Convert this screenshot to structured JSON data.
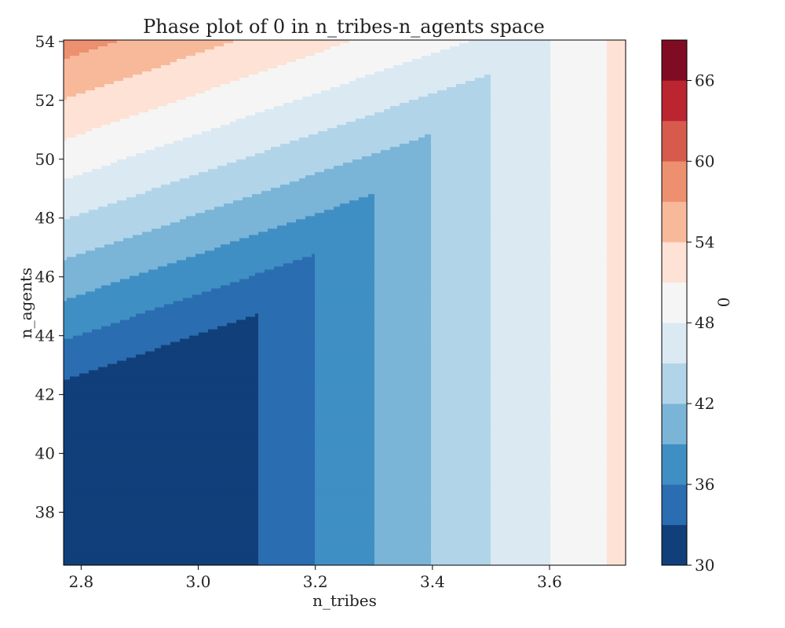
{
  "chart_data": {
    "type": "contourf",
    "title": "Phase plot of 0 in n_tribes-n_agents space",
    "xlabel": "n_tribes",
    "ylabel": "n_agents",
    "colorbar_label": "0",
    "xlim": [
      2.77,
      3.73
    ],
    "ylim": [
      36.2,
      54.05
    ],
    "x_ticks": [
      2.8,
      3.0,
      3.2,
      3.4,
      3.6
    ],
    "y_ticks": [
      38,
      40,
      42,
      44,
      46,
      48,
      50,
      52,
      54
    ],
    "x_tick_labels": [
      "2.8",
      "3.0",
      "3.2",
      "3.4",
      "3.6"
    ],
    "y_tick_labels": [
      "38",
      "40",
      "42",
      "44",
      "46",
      "48",
      "50",
      "52",
      "54"
    ],
    "levels": [
      30,
      33,
      36,
      39,
      42,
      45,
      48,
      51,
      54,
      57,
      60,
      63,
      66,
      69
    ],
    "level_colors": [
      "#113f7a",
      "#2a6db0",
      "#3f8fc4",
      "#7ab4d7",
      "#b1d4e8",
      "#dbe9f3",
      "#f5f5f5",
      "#fde2d5",
      "#f8b99b",
      "#ec906f",
      "#d75b4c",
      "#bb2530",
      "#800c24"
    ],
    "colorbar_ticks": [
      30,
      36,
      42,
      48,
      54,
      60,
      66
    ],
    "colorbar_tick_labels": [
      "30",
      "36",
      "42",
      "48",
      "54",
      "60",
      "66"
    ],
    "field_model": {
      "form": "max(a*n_agents - b*n_tribes + c, d*(n_tribes - 3.0) + 30)",
      "a": 2.2,
      "b": 15,
      "c": -18.9,
      "d": 30
    }
  }
}
